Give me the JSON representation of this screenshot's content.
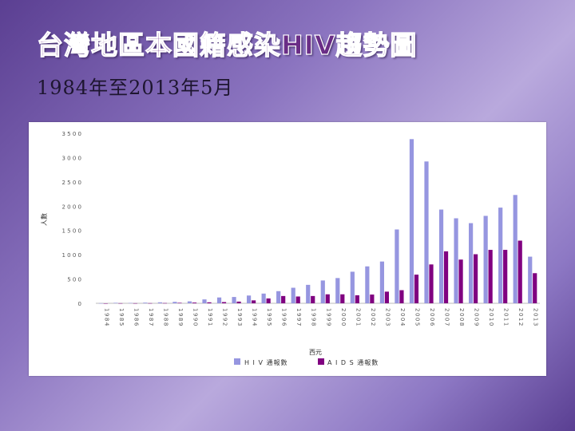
{
  "slide": {
    "title": "台灣地區本國籍感染HIV趨勢圖",
    "subtitle": "1984年至2013年5月"
  },
  "colors": {
    "hiv": "#9696e0",
    "aids": "#800080",
    "title": "#6a2d86"
  },
  "chart_data": {
    "type": "bar",
    "xlabel": "西元",
    "ylabel": "人數",
    "ylim": [
      0,
      3500
    ],
    "yticks": [
      "0",
      "5 0 0",
      "1 0 0 0",
      "1 5 0 0",
      "2 0 0 0",
      "2 5 0 0",
      "3 0 0 0",
      "3 5 0 0"
    ],
    "categories": [
      "1984",
      "1985",
      "1986",
      "1987",
      "1988",
      "1989",
      "1990",
      "1991",
      "1992",
      "1993",
      "1994",
      "1995",
      "1996",
      "1997",
      "1998",
      "1999",
      "2000",
      "2001",
      "2002",
      "2003",
      "2004",
      "2005",
      "2006",
      "2007",
      "2008",
      "2009",
      "2010",
      "2011",
      "2012",
      "2013"
    ],
    "series": [
      {
        "name": "H I V 通報數",
        "color": "#9696e0",
        "values": [
          2,
          10,
          8,
          14,
          20,
          30,
          40,
          80,
          120,
          130,
          160,
          200,
          250,
          320,
          380,
          470,
          520,
          650,
          760,
          860,
          1520,
          3380,
          2920,
          1930,
          1750,
          1650,
          1800,
          1970,
          2230,
          960
        ]
      },
      {
        "name": "A I D S 通報數",
        "color": "#800080",
        "values": [
          0,
          2,
          2,
          3,
          5,
          10,
          15,
          20,
          25,
          35,
          60,
          100,
          150,
          140,
          150,
          185,
          185,
          165,
          180,
          240,
          270,
          590,
          800,
          1070,
          900,
          1010,
          1100,
          1100,
          1290,
          620
        ]
      }
    ],
    "legend": "bottom-center",
    "grid": false
  }
}
